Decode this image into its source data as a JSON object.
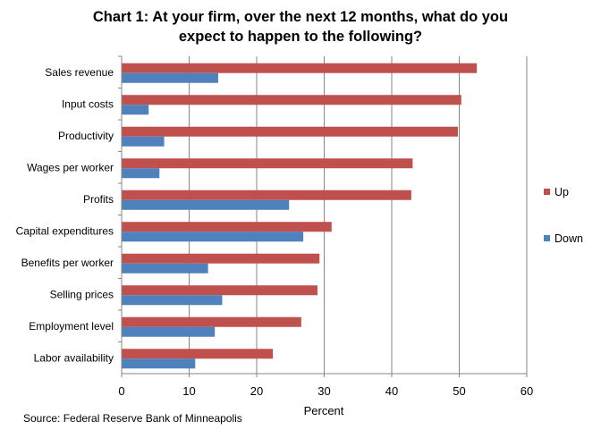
{
  "chart_data": {
    "type": "bar",
    "orientation": "horizontal",
    "title_lines": [
      "Chart 1: At your firm, over the next 12 months, what do you",
      "expect to happen to the following?"
    ],
    "xlabel": "Percent",
    "ylabel": "",
    "xlim": [
      0,
      60
    ],
    "xticks": [
      0,
      10,
      20,
      30,
      40,
      50,
      60
    ],
    "grid": "vertical",
    "legend_position": "right",
    "categories": [
      "Sales revenue",
      "Input costs",
      "Productivity",
      "Wages per worker",
      "Profits",
      "Capital expenditures",
      "Benefits per worker",
      "Selling prices",
      "Employment level",
      "Labor availability"
    ],
    "series": [
      {
        "name": "Up",
        "color": "#C0504D",
        "values": [
          52.6,
          50.3,
          49.8,
          43.1,
          42.9,
          31.1,
          29.3,
          29.0,
          26.6,
          22.4
        ]
      },
      {
        "name": "Down",
        "color": "#4F81BD",
        "values": [
          14.3,
          4.0,
          6.3,
          5.6,
          24.8,
          26.9,
          12.8,
          14.9,
          13.8,
          10.9
        ]
      }
    ],
    "source": "Source: Federal Reserve Bank of Minneapolis"
  }
}
